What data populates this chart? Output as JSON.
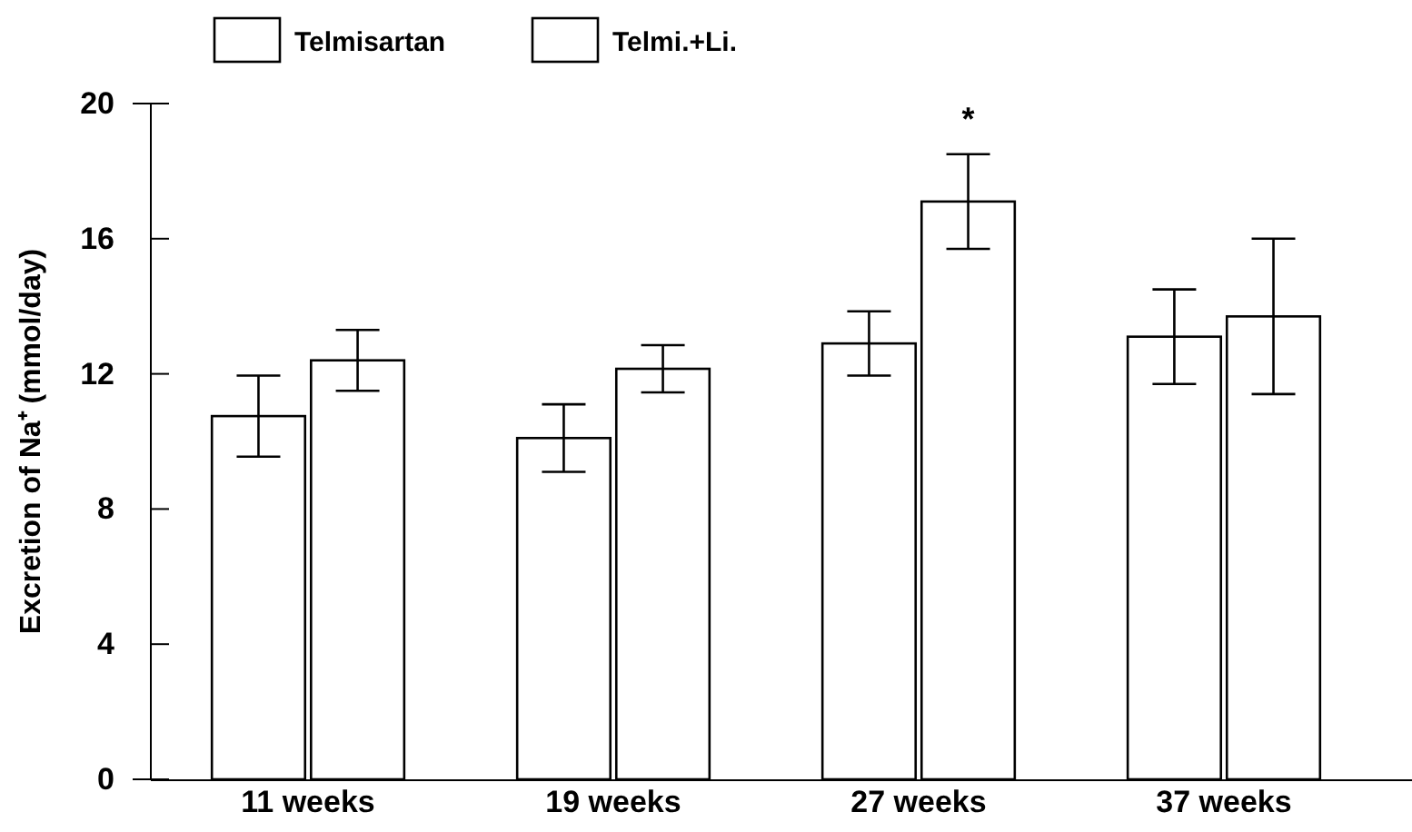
{
  "chart_data": {
    "type": "bar",
    "ylabel": "Excretion of Na⁺ (mmol/day)",
    "categories": [
      "11 weeks",
      "19 weeks",
      "27 weeks",
      "37 weeks"
    ],
    "series": [
      {
        "name": "Telmisartan",
        "color": "#ffffff",
        "values": [
          10.75,
          10.1,
          12.9,
          13.1
        ],
        "errors": [
          1.2,
          1.0,
          0.95,
          1.4
        ]
      },
      {
        "name": "Telmi.+Li.",
        "color": "#ffffff",
        "values": [
          12.4,
          12.15,
          17.1,
          13.7
        ],
        "errors": [
          0.9,
          0.7,
          1.4,
          2.3
        ]
      }
    ],
    "ylim": [
      0,
      20
    ],
    "yticks": [
      0,
      4,
      8,
      12,
      16,
      20
    ],
    "grid": false,
    "legend": "top left",
    "annotations": [
      "*"
    ]
  }
}
